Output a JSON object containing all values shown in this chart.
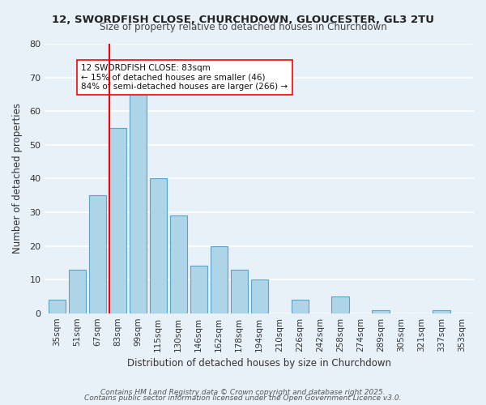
{
  "title": "12, SWORDFISH CLOSE, CHURCHDOWN, GLOUCESTER, GL3 2TU",
  "subtitle": "Size of property relative to detached houses in Churchdown",
  "xlabel": "Distribution of detached houses by size in Churchdown",
  "ylabel": "Number of detached properties",
  "bar_labels": [
    "35sqm",
    "51sqm",
    "67sqm",
    "83sqm",
    "99sqm",
    "115sqm",
    "130sqm",
    "146sqm",
    "162sqm",
    "178sqm",
    "194sqm",
    "210sqm",
    "226sqm",
    "242sqm",
    "258sqm",
    "274sqm",
    "289sqm",
    "305sqm",
    "321sqm",
    "337sqm",
    "353sqm"
  ],
  "bar_values": [
    4,
    13,
    35,
    55,
    65,
    40,
    29,
    14,
    20,
    13,
    10,
    0,
    4,
    0,
    5,
    0,
    1,
    0,
    0,
    1,
    0
  ],
  "bar_color": "#aed4e8",
  "bar_edge_color": "#5ba3c9",
  "vline_x": 3,
  "vline_color": "red",
  "annotation_title": "12 SWORDFISH CLOSE: 83sqm",
  "annotation_line1": "← 15% of detached houses are smaller (46)",
  "annotation_line2": "84% of semi-detached houses are larger (266) →",
  "annotation_box_color": "white",
  "annotation_box_edge": "red",
  "ylim": [
    0,
    80
  ],
  "yticks": [
    0,
    10,
    20,
    30,
    40,
    50,
    60,
    70,
    80
  ],
  "footer1": "Contains HM Land Registry data © Crown copyright and database right 2025.",
  "footer2": "Contains public sector information licensed under the Open Government Licence v3.0.",
  "background_color": "#e8f0f8",
  "grid_color": "white"
}
